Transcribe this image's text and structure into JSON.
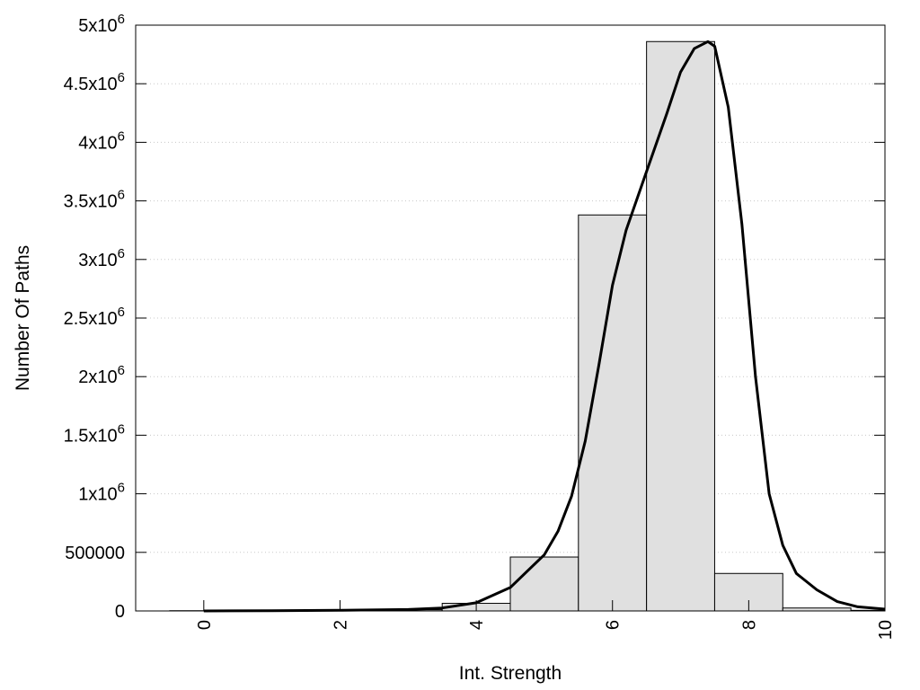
{
  "chart_data": {
    "type": "bar",
    "xlabel": "Int. Strength",
    "ylabel": "Number Of Paths",
    "xlim": [
      -1,
      10
    ],
    "ylim": [
      0,
      5000000
    ],
    "grid": {
      "y": true,
      "x": false
    },
    "x_ticks": [
      0,
      2,
      4,
      6,
      8,
      10
    ],
    "x_tick_labels": [
      "0",
      "2",
      "4",
      "6",
      "8",
      "10"
    ],
    "y_ticks": [
      {
        "value": 0,
        "mantissa": "0",
        "exp": ""
      },
      {
        "value": 500000,
        "mantissa": "500000",
        "exp": ""
      },
      {
        "value": 1000000,
        "mantissa": "1x10",
        "exp": "6"
      },
      {
        "value": 1500000,
        "mantissa": "1.5x10",
        "exp": "6"
      },
      {
        "value": 2000000,
        "mantissa": "2x10",
        "exp": "6"
      },
      {
        "value": 2500000,
        "mantissa": "2.5x10",
        "exp": "6"
      },
      {
        "value": 3000000,
        "mantissa": "3x10",
        "exp": "6"
      },
      {
        "value": 3500000,
        "mantissa": "3.5x10",
        "exp": "6"
      },
      {
        "value": 4000000,
        "mantissa": "4x10",
        "exp": "6"
      },
      {
        "value": 4500000,
        "mantissa": "4.5x10",
        "exp": "6"
      },
      {
        "value": 5000000,
        "mantissa": "5x10",
        "exp": "6"
      }
    ],
    "bin_width": 1,
    "bins": [
      {
        "x": 0,
        "value": 2000
      },
      {
        "x": 1,
        "value": 2000
      },
      {
        "x": 2,
        "value": 5000
      },
      {
        "x": 3,
        "value": 10000
      },
      {
        "x": 4,
        "value": 65000
      },
      {
        "x": 5,
        "value": 460000
      },
      {
        "x": 6,
        "value": 3380000
      },
      {
        "x": 7,
        "value": 4860000
      },
      {
        "x": 8,
        "value": 320000
      },
      {
        "x": 9,
        "value": 25000
      },
      {
        "x": 10,
        "value": 5000
      }
    ],
    "fit_curve": [
      [
        0,
        0
      ],
      [
        1,
        2000
      ],
      [
        2,
        5000
      ],
      [
        3,
        12000
      ],
      [
        3.5,
        25000
      ],
      [
        4,
        70000
      ],
      [
        4.5,
        200000
      ],
      [
        5,
        480000
      ],
      [
        5.2,
        680000
      ],
      [
        5.4,
        980000
      ],
      [
        5.6,
        1450000
      ],
      [
        5.8,
        2100000
      ],
      [
        6,
        2780000
      ],
      [
        6.2,
        3250000
      ],
      [
        6.5,
        3750000
      ],
      [
        6.8,
        4250000
      ],
      [
        7,
        4600000
      ],
      [
        7.2,
        4800000
      ],
      [
        7.4,
        4860000
      ],
      [
        7.5,
        4820000
      ],
      [
        7.7,
        4300000
      ],
      [
        7.9,
        3300000
      ],
      [
        8.1,
        2000000
      ],
      [
        8.3,
        1000000
      ],
      [
        8.5,
        560000
      ],
      [
        8.7,
        320000
      ],
      [
        9,
        180000
      ],
      [
        9.3,
        80000
      ],
      [
        9.6,
        35000
      ],
      [
        10,
        15000
      ]
    ]
  }
}
